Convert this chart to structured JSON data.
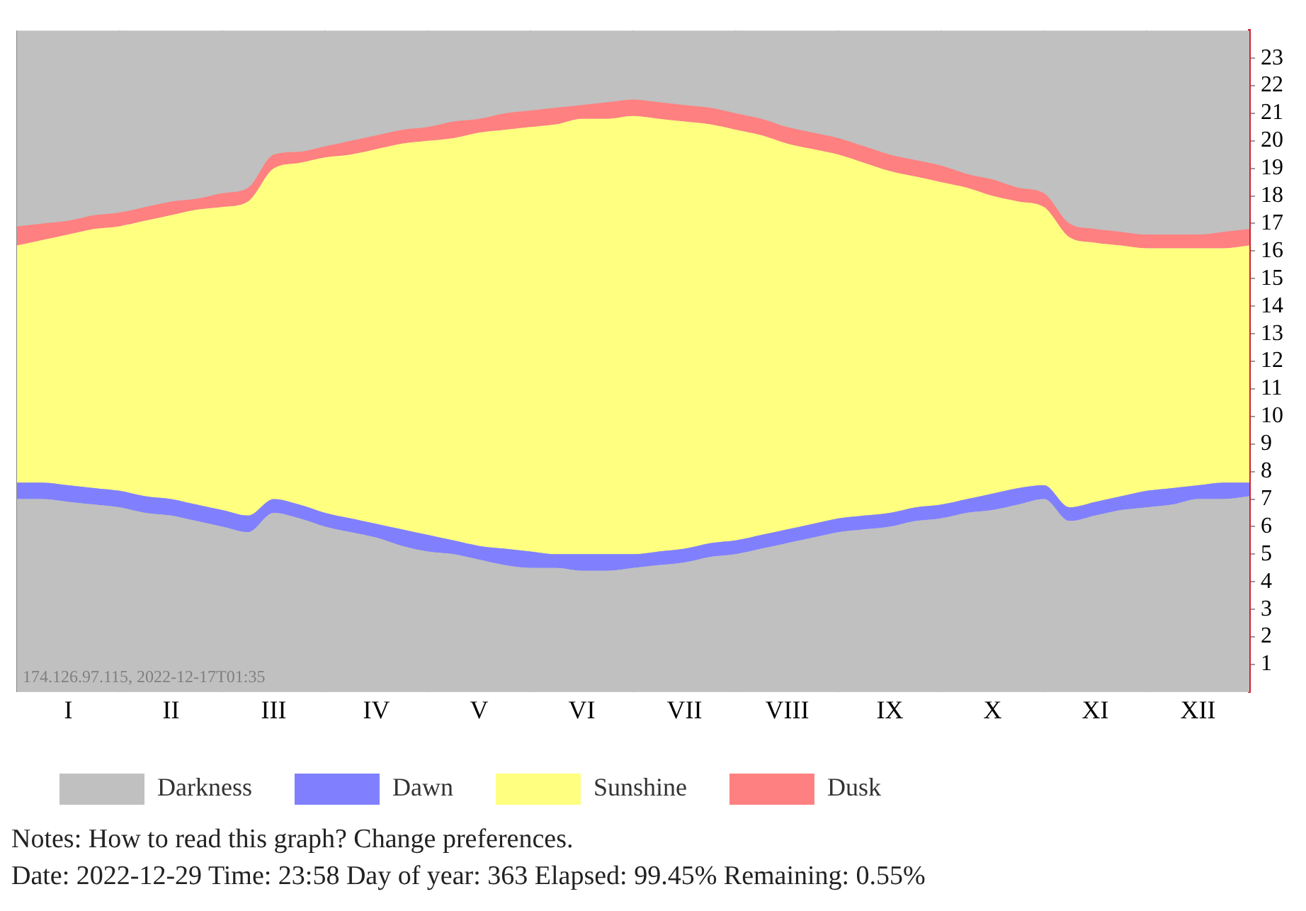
{
  "chart_data": {
    "type": "area",
    "categories": [
      null,
      null,
      "I",
      null,
      null,
      null,
      "II",
      null,
      null,
      null,
      "III",
      null,
      null,
      null,
      "IV",
      null,
      null,
      null,
      "V",
      null,
      null,
      null,
      "VI",
      null,
      null,
      null,
      "VII",
      null,
      null,
      null,
      "VIII",
      null,
      null,
      null,
      "IX",
      null,
      null,
      null,
      "X",
      null,
      null,
      null,
      "XI",
      null,
      null,
      null,
      "XII",
      null,
      null
    ],
    "series": [
      {
        "name": "Darkness",
        "color": "#c0c0c0",
        "values": [
          7.0,
          7.0,
          6.9,
          6.8,
          6.7,
          6.5,
          6.4,
          6.2,
          6.0,
          5.8,
          6.5,
          6.3,
          6.0,
          5.8,
          5.6,
          5.3,
          5.1,
          5.0,
          4.8,
          4.6,
          4.5,
          4.5,
          4.4,
          4.4,
          4.5,
          4.6,
          4.7,
          4.9,
          5.0,
          5.2,
          5.4,
          5.6,
          5.8,
          5.9,
          6.0,
          6.2,
          6.3,
          6.5,
          6.6,
          6.8,
          7.0,
          6.2,
          6.4,
          6.6,
          6.7,
          6.8,
          7.0,
          7.0,
          7.1
        ]
      },
      {
        "name": "Dawn",
        "color": "#8080ff",
        "values": [
          7.6,
          7.6,
          7.5,
          7.4,
          7.3,
          7.1,
          7.0,
          6.8,
          6.6,
          6.4,
          7.0,
          6.8,
          6.5,
          6.3,
          6.1,
          5.9,
          5.7,
          5.5,
          5.3,
          5.2,
          5.1,
          5.0,
          5.0,
          5.0,
          5.0,
          5.1,
          5.2,
          5.4,
          5.5,
          5.7,
          5.9,
          6.1,
          6.3,
          6.4,
          6.5,
          6.7,
          6.8,
          7.0,
          7.2,
          7.4,
          7.5,
          6.7,
          6.9,
          7.1,
          7.3,
          7.4,
          7.5,
          7.6,
          7.6
        ]
      },
      {
        "name": "Sunshine",
        "color": "#ffff80",
        "values": [
          16.2,
          16.4,
          16.6,
          16.8,
          16.9,
          17.1,
          17.3,
          17.5,
          17.6,
          17.8,
          19.0,
          19.2,
          19.4,
          19.5,
          19.7,
          19.9,
          20.0,
          20.1,
          20.3,
          20.4,
          20.5,
          20.6,
          20.8,
          20.8,
          20.9,
          20.8,
          20.7,
          20.6,
          20.4,
          20.2,
          19.9,
          19.7,
          19.5,
          19.2,
          18.9,
          18.7,
          18.5,
          18.3,
          18.0,
          17.8,
          17.6,
          16.5,
          16.3,
          16.2,
          16.1,
          16.1,
          16.1,
          16.1,
          16.2
        ]
      },
      {
        "name": "Dusk",
        "color": "#ff8080",
        "values": [
          16.9,
          17.0,
          17.1,
          17.3,
          17.4,
          17.6,
          17.8,
          17.9,
          18.1,
          18.3,
          19.5,
          19.6,
          19.8,
          20.0,
          20.2,
          20.4,
          20.5,
          20.7,
          20.8,
          21.0,
          21.1,
          21.2,
          21.3,
          21.4,
          21.5,
          21.4,
          21.3,
          21.2,
          21.0,
          20.8,
          20.5,
          20.3,
          20.1,
          19.8,
          19.5,
          19.3,
          19.1,
          18.8,
          18.6,
          18.3,
          18.1,
          17.0,
          16.8,
          16.7,
          16.6,
          16.6,
          16.6,
          16.7,
          16.8
        ]
      }
    ],
    "ylim": [
      0,
      24
    ],
    "yticks": [
      1,
      2,
      3,
      4,
      5,
      6,
      7,
      8,
      9,
      10,
      11,
      12,
      13,
      14,
      15,
      16,
      17,
      18,
      19,
      20,
      21,
      22,
      23
    ],
    "grid": true,
    "legend": "bottom",
    "annotations": [
      "174.126.97.115, 2022-12-17T01:35",
      "Notes: How to read this graph? Change preferences.",
      "Date: 2022-12-29 Time: 23:58 Day of year: 363 Elapsed: 99.45% Remaining: 0.55%"
    ]
  }
}
